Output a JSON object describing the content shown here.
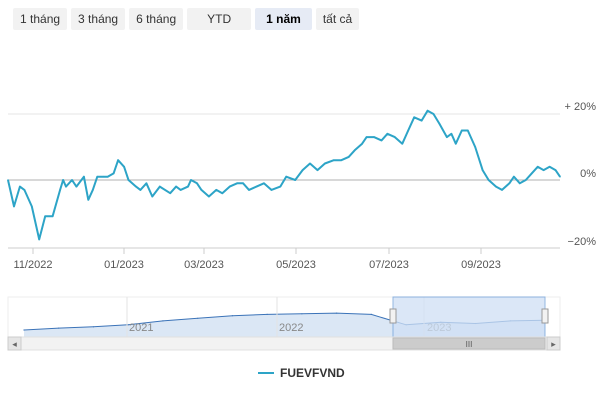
{
  "range_selector": {
    "buttons": [
      "1 tháng",
      "3 tháng",
      "6 tháng",
      "YTD",
      "1 năm",
      "tất cả"
    ],
    "active": "1 năm"
  },
  "colors": {
    "series": "#2da4c7",
    "grid": "#e6e6e6",
    "zero_line": "#b0b0b0",
    "navigator_fill": "#dbe7f5",
    "navigator_mask": "#cfe0f5"
  },
  "chart_data": [
    {
      "type": "line",
      "title": "",
      "xlabel": "",
      "ylabel": "",
      "x_ticks": [
        "11/2022",
        "01/2023",
        "03/2023",
        "05/2023",
        "07/2023",
        "09/2023"
      ],
      "y_ticks": [
        "+ 20%",
        "0%",
        "−20%"
      ],
      "y_tick_values": [
        20,
        0,
        -20
      ],
      "ylim": [
        -20,
        20
      ],
      "grid": true,
      "legend": "bottom",
      "series": [
        {
          "name": "FUEVFVND",
          "x": [
            "2022-10-10",
            "2022-10-14",
            "2022-10-18",
            "2022-10-21",
            "2022-10-26",
            "2022-10-31",
            "2022-11-04",
            "2022-11-09",
            "2022-11-14",
            "2022-11-16",
            "2022-11-18",
            "2022-11-22",
            "2022-11-25",
            "2022-11-30",
            "2022-12-03",
            "2022-12-06",
            "2022-12-09",
            "2022-12-13",
            "2022-12-16",
            "2022-12-20",
            "2022-12-23",
            "2022-12-27",
            "2022-12-30",
            "2023-01-04",
            "2023-01-07",
            "2023-01-11",
            "2023-01-15",
            "2023-01-20",
            "2023-01-27",
            "2023-01-31",
            "2023-02-03",
            "2023-02-08",
            "2023-02-10",
            "2023-02-14",
            "2023-02-17",
            "2023-02-22",
            "2023-02-27",
            "2023-03-03",
            "2023-03-08",
            "2023-03-13",
            "2023-03-17",
            "2023-03-21",
            "2023-03-26",
            "2023-03-31",
            "2023-04-05",
            "2023-04-11",
            "2023-04-15",
            "2023-04-21",
            "2023-04-26",
            "2023-05-01",
            "2023-05-06",
            "2023-05-11",
            "2023-05-17",
            "2023-05-22",
            "2023-05-27",
            "2023-05-31",
            "2023-06-05",
            "2023-06-08",
            "2023-06-13",
            "2023-06-18",
            "2023-06-22",
            "2023-06-27",
            "2023-07-02",
            "2023-07-06",
            "2023-07-10",
            "2023-07-15",
            "2023-07-19",
            "2023-07-23",
            "2023-07-27",
            "2023-08-01",
            "2023-08-04",
            "2023-08-07",
            "2023-08-11",
            "2023-08-15",
            "2023-08-20",
            "2023-08-25",
            "2023-08-29",
            "2023-09-03",
            "2023-09-07",
            "2023-09-12",
            "2023-09-15",
            "2023-09-19",
            "2023-09-23",
            "2023-09-27",
            "2023-10-01",
            "2023-10-05",
            "2023-10-09",
            "2023-10-13",
            "2023-10-16"
          ],
          "y": [
            0,
            -8,
            -2,
            -3,
            -8,
            -18,
            -11,
            -11,
            -3,
            0,
            -2,
            0,
            -2,
            1,
            -6,
            -3,
            1,
            1,
            1,
            2,
            6,
            4,
            0,
            -2,
            -3,
            -1,
            -5,
            -2,
            -4,
            -2,
            -3,
            -2,
            0,
            -1,
            -3,
            -5,
            -3,
            -4,
            -2,
            -1,
            -1,
            -3,
            -2,
            -1,
            -3,
            -2,
            1,
            0,
            3,
            5,
            3,
            5,
            6,
            6,
            7,
            9,
            11,
            13,
            13,
            12,
            14,
            13,
            11,
            15,
            19,
            18,
            21,
            20,
            17,
            13,
            14,
            11,
            15,
            15,
            10,
            3,
            0,
            -2,
            -3,
            -1,
            1,
            -1,
            0,
            2,
            4,
            3,
            4,
            3,
            1
          ]
        }
      ]
    },
    {
      "type": "area",
      "title": "",
      "x_ticks": [
        "2021",
        "2022",
        "2023"
      ],
      "series": [
        {
          "name": "",
          "x": [
            2020.0,
            2020.25,
            2020.5,
            2020.75,
            2021.0,
            2021.25,
            2021.5,
            2021.75,
            2022.0,
            2022.25,
            2022.5,
            2022.75,
            2023.0,
            2023.25,
            2023.5,
            2023.75
          ],
          "y": [
            -20,
            -17,
            -15,
            -12,
            -6,
            -2,
            2,
            4,
            5,
            6,
            4,
            -12,
            -8,
            -10,
            -6,
            -5
          ]
        }
      ],
      "selection": [
        "2022-10-10",
        "2023-10-16"
      ]
    }
  ],
  "scrollbar": {
    "left_arrow": "◂",
    "right_arrow": "▸",
    "grip": "III"
  }
}
